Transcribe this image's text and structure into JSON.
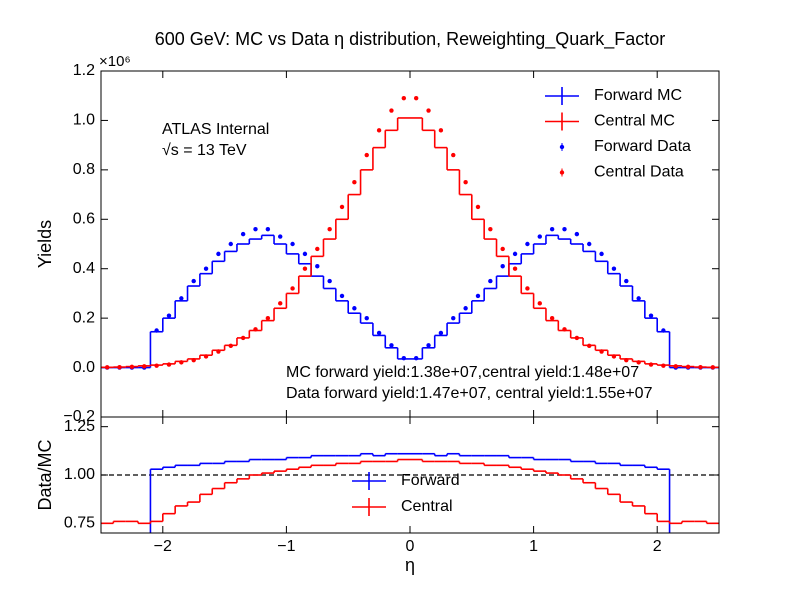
{
  "chart_data": [
    {
      "type": "histogram",
      "title": "600 GeV: MC vs Data η distribution, Reweighting_Quark_Factor",
      "ylabel": "Yields",
      "y_offset_label": "×10⁶",
      "annotations": [
        "ATLAS Internal",
        "√s = 13 TeV",
        "MC forward yield:1.38e+07,central yield:1.48e+07",
        "Data forward yield:1.47e+07, central yield:1.55e+07"
      ],
      "ylim": [
        -0.2,
        1.2
      ],
      "yticks": [
        {
          "value": -0.2,
          "label": "−0.2"
        },
        {
          "value": 0,
          "label": "0.0"
        },
        0.2,
        0.4,
        0.6,
        0.8,
        {
          "value": 1,
          "label": "1.0"
        },
        1.2
      ],
      "legend": "upper right",
      "bins": [
        -2.5,
        -2.4,
        -2.3,
        -2.2,
        -2.1,
        -2.0,
        -1.9,
        -1.8,
        -1.7,
        -1.6,
        -1.5,
        -1.4,
        -1.3,
        -1.2,
        -1.1,
        -1.0,
        -0.9,
        -0.8,
        -0.7,
        -0.6,
        -0.5,
        -0.4,
        -0.3,
        -0.2,
        -0.1,
        0,
        0.1,
        0.2,
        0.3,
        0.4,
        0.5,
        0.6,
        0.7,
        0.8,
        0.9,
        1.0,
        1.1,
        1.2,
        1.3,
        1.4,
        1.5,
        1.6,
        1.7,
        1.8,
        1.9,
        2.0,
        2.1,
        2.2,
        2.3,
        2.4,
        2.5
      ],
      "series": [
        {
          "name": "Forward MC",
          "color": "#0000ff",
          "style": "step",
          "values": [
            0,
            0,
            0,
            0,
            0.145,
            0.2,
            0.27,
            0.33,
            0.38,
            0.43,
            0.47,
            0.5,
            0.52,
            0.535,
            0.5,
            0.46,
            0.42,
            0.37,
            0.32,
            0.27,
            0.22,
            0.18,
            0.13,
            0.08,
            0.035,
            0.035,
            0.08,
            0.13,
            0.18,
            0.22,
            0.27,
            0.32,
            0.37,
            0.42,
            0.46,
            0.5,
            0.535,
            0.52,
            0.5,
            0.47,
            0.43,
            0.38,
            0.33,
            0.27,
            0.2,
            0.145,
            0,
            0,
            0,
            0
          ]
        },
        {
          "name": "Central MC",
          "color": "#ff0000",
          "style": "step",
          "values": [
            0.001,
            0.002,
            0.004,
            0.007,
            0.01,
            0.015,
            0.025,
            0.035,
            0.05,
            0.07,
            0.09,
            0.12,
            0.15,
            0.19,
            0.24,
            0.3,
            0.37,
            0.45,
            0.52,
            0.6,
            0.7,
            0.8,
            0.89,
            0.96,
            1.01,
            1.01,
            0.96,
            0.89,
            0.8,
            0.7,
            0.6,
            0.52,
            0.45,
            0.37,
            0.3,
            0.24,
            0.19,
            0.15,
            0.12,
            0.09,
            0.07,
            0.05,
            0.035,
            0.025,
            0.015,
            0.01,
            0.007,
            0.004,
            0.002,
            0.001
          ]
        },
        {
          "name": "Forward Data",
          "color": "#0000ff",
          "style": "points",
          "values": [
            0,
            0,
            0,
            0,
            0.15,
            0.21,
            0.28,
            0.35,
            0.4,
            0.46,
            0.5,
            0.54,
            0.56,
            0.56,
            0.53,
            0.5,
            0.46,
            0.41,
            0.35,
            0.29,
            0.24,
            0.2,
            0.14,
            0.09,
            0.038,
            0.038,
            0.09,
            0.14,
            0.2,
            0.24,
            0.29,
            0.35,
            0.41,
            0.46,
            0.5,
            0.53,
            0.56,
            0.56,
            0.54,
            0.5,
            0.46,
            0.4,
            0.35,
            0.28,
            0.21,
            0.15,
            0,
            0,
            0,
            0
          ]
        },
        {
          "name": "Central Data",
          "color": "#ff0000",
          "style": "points",
          "values": [
            0.001,
            0.0015,
            0.003,
            0.005,
            0.0075,
            0.012,
            0.021,
            0.03,
            0.045,
            0.065,
            0.088,
            0.12,
            0.155,
            0.2,
            0.26,
            0.32,
            0.4,
            0.48,
            0.56,
            0.65,
            0.75,
            0.86,
            0.96,
            1.04,
            1.09,
            1.09,
            1.04,
            0.96,
            0.86,
            0.75,
            0.65,
            0.56,
            0.48,
            0.4,
            0.32,
            0.26,
            0.2,
            0.155,
            0.12,
            0.088,
            0.065,
            0.045,
            0.03,
            0.021,
            0.012,
            0.0075,
            0.005,
            0.003,
            0.0015,
            0.001
          ]
        }
      ]
    },
    {
      "type": "histogram",
      "xlabel": "η",
      "ylabel": "Data/MC",
      "xlim": [
        -2.5,
        2.5
      ],
      "xticks": [
        {
          "value": -2,
          "label": "−2"
        },
        {
          "value": -1,
          "label": "−1"
        },
        0,
        1,
        2
      ],
      "ylim": [
        0.7,
        1.3
      ],
      "yticks": [
        0.75,
        {
          "value": 1,
          "label": "1.00"
        },
        1.25
      ],
      "reference_line": 1,
      "legend": "center",
      "bins": [
        -2.5,
        -2.4,
        -2.3,
        -2.2,
        -2.1,
        -2.0,
        -1.9,
        -1.8,
        -1.7,
        -1.6,
        -1.5,
        -1.4,
        -1.3,
        -1.2,
        -1.1,
        -1.0,
        -0.9,
        -0.8,
        -0.7,
        -0.6,
        -0.5,
        -0.4,
        -0.3,
        -0.2,
        -0.1,
        0,
        0.1,
        0.2,
        0.3,
        0.4,
        0.5,
        0.6,
        0.7,
        0.8,
        0.9,
        1.0,
        1.1,
        1.2,
        1.3,
        1.4,
        1.5,
        1.6,
        1.7,
        1.8,
        1.9,
        2.0,
        2.1,
        2.2,
        2.3,
        2.4,
        2.5
      ],
      "series": [
        {
          "name": "Forward",
          "color": "#0000ff",
          "style": "step",
          "values": [
            null,
            null,
            null,
            null,
            1.03,
            1.04,
            1.05,
            1.05,
            1.06,
            1.06,
            1.07,
            1.07,
            1.08,
            1.08,
            1.08,
            1.09,
            1.09,
            1.1,
            1.1,
            1.1,
            1.1,
            1.11,
            1.1,
            1.11,
            1.11,
            1.11,
            1.11,
            1.1,
            1.11,
            1.1,
            1.1,
            1.1,
            1.1,
            1.09,
            1.09,
            1.08,
            1.08,
            1.08,
            1.07,
            1.07,
            1.06,
            1.06,
            1.05,
            1.05,
            1.04,
            1.03,
            null,
            null,
            null,
            null
          ]
        },
        {
          "name": "Central",
          "color": "#ff0000",
          "style": "step",
          "values": [
            0.75,
            0.76,
            0.76,
            0.75,
            0.76,
            0.8,
            0.84,
            0.86,
            0.9,
            0.93,
            0.96,
            0.98,
            1.0,
            1.01,
            1.02,
            1.03,
            1.04,
            1.05,
            1.05,
            1.06,
            1.06,
            1.07,
            1.07,
            1.07,
            1.08,
            1.08,
            1.07,
            1.07,
            1.07,
            1.06,
            1.06,
            1.05,
            1.05,
            1.04,
            1.03,
            1.02,
            1.01,
            1.0,
            0.98,
            0.96,
            0.93,
            0.9,
            0.86,
            0.84,
            0.8,
            0.76,
            0.75,
            0.76,
            0.76,
            0.75
          ]
        }
      ]
    }
  ]
}
